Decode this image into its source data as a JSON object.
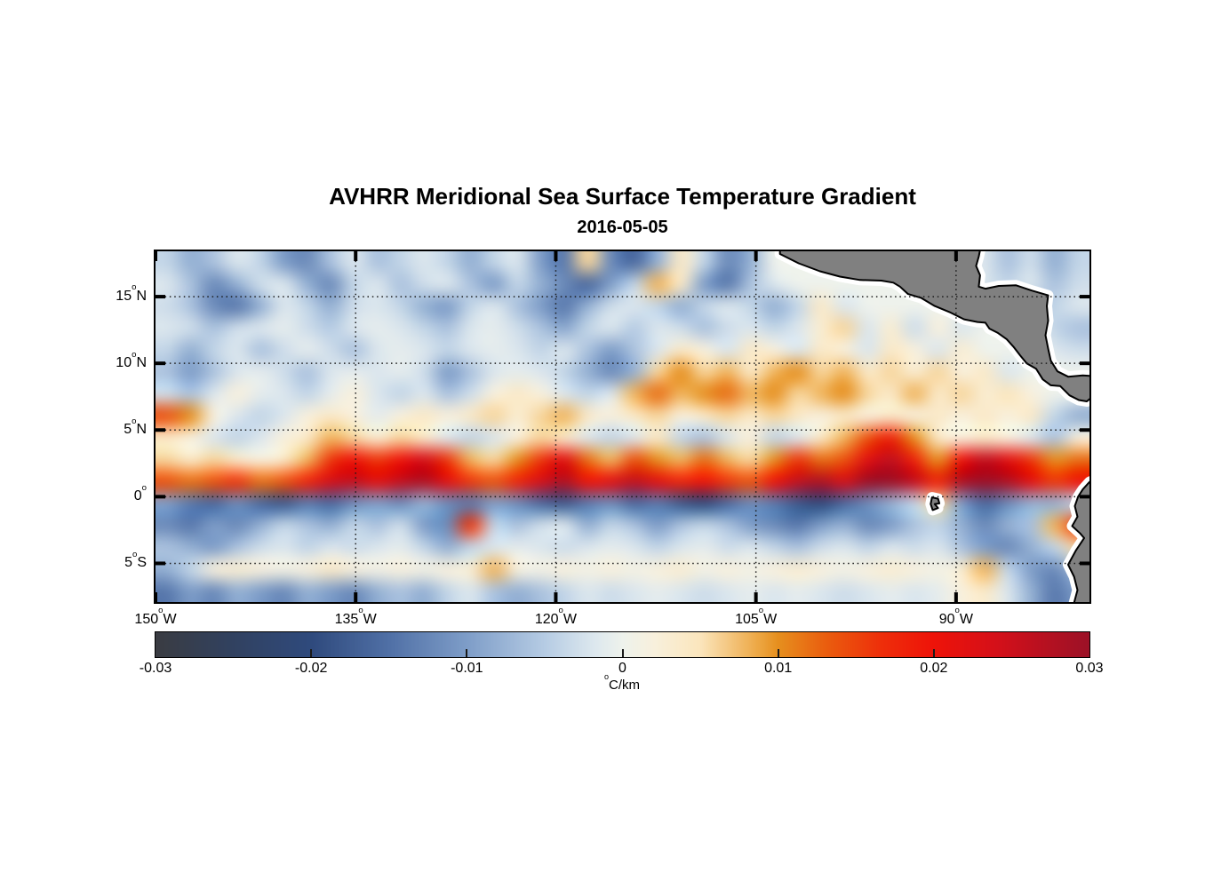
{
  "chart_data": {
    "type": "heatmap",
    "title": "AVHRR Meridional Sea Surface Temperature Gradient",
    "subtitle": "2016-05-05",
    "colorbar": {
      "tick_labels": [
        "-0.03",
        "-0.02",
        "-0.01",
        "0",
        "0.01",
        "0.02",
        "0.03"
      ],
      "tick_values": [
        -0.03,
        -0.02,
        -0.01,
        0,
        0.01,
        0.02,
        0.03
      ],
      "clim": [
        -0.03,
        0.03
      ],
      "unit_sup": "o",
      "unit_main": "C/km"
    },
    "axes": {
      "lon_range": [
        -150,
        -80
      ],
      "lat_range": [
        -7.9,
        18.4
      ],
      "xticks": [
        {
          "lon": -150,
          "deg": "150",
          "sup": "o",
          "dir": "W"
        },
        {
          "lon": -135,
          "deg": "135",
          "sup": "o",
          "dir": "W"
        },
        {
          "lon": -120,
          "deg": "120",
          "sup": "o",
          "dir": "W"
        },
        {
          "lon": -105,
          "deg": "105",
          "sup": "o",
          "dir": "W"
        },
        {
          "lon": -90,
          "deg": "90",
          "sup": "o",
          "dir": "W"
        }
      ],
      "yticks": [
        {
          "lat": 15,
          "deg": "15",
          "sup": "o",
          "dir": "N"
        },
        {
          "lat": 10,
          "deg": "10",
          "sup": "o",
          "dir": "N"
        },
        {
          "lat": 5,
          "deg": "5",
          "sup": "o",
          "dir": "N"
        },
        {
          "lat": 0,
          "deg": "0",
          "sup": "o",
          "dir": ""
        },
        {
          "lat": -5,
          "deg": "5",
          "sup": "o",
          "dir": "S"
        }
      ],
      "grid_lons": [
        -135,
        -120,
        -105,
        -90
      ],
      "grid_lats": [
        15,
        10,
        5,
        0,
        -5
      ]
    },
    "colormap_stops": [
      {
        "t": 0.0,
        "c": "#3a3c42"
      },
      {
        "t": 0.08,
        "c": "#31415f"
      },
      {
        "t": 0.167,
        "c": "#2f4a7d"
      },
      {
        "t": 0.25,
        "c": "#5070a6"
      },
      {
        "t": 0.333,
        "c": "#7e9dc8"
      },
      {
        "t": 0.417,
        "c": "#b6cce4"
      },
      {
        "t": 0.47,
        "c": "#dde8ee"
      },
      {
        "t": 0.5,
        "c": "#eef2ec"
      },
      {
        "t": 0.535,
        "c": "#f8f0dc"
      },
      {
        "t": 0.583,
        "c": "#fbe6bd"
      },
      {
        "t": 0.645,
        "c": "#eda845"
      },
      {
        "t": 0.667,
        "c": "#e68f1e"
      },
      {
        "t": 0.72,
        "c": "#ea5c0e"
      },
      {
        "t": 0.78,
        "c": "#ee2d0a"
      },
      {
        "t": 0.833,
        "c": "#ee1309"
      },
      {
        "t": 0.9,
        "c": "#d51019"
      },
      {
        "t": 1.0,
        "c": "#9c1127"
      }
    ],
    "grid": {
      "nlon": 40,
      "nlat": 16,
      "units": "0.001 degC per km, clim -30..30",
      "values": [
        [
          -4,
          -8,
          -6,
          -2,
          -4,
          -10,
          -12,
          -6,
          -2,
          -6,
          -4,
          -2,
          -4,
          -8,
          -4,
          -2,
          -10,
          -14,
          6,
          -12,
          -16,
          -8,
          4,
          -4,
          -12,
          -8,
          0,
          0,
          0,
          0,
          0,
          0,
          0,
          0,
          0,
          -2,
          -6,
          -3,
          -8,
          -4
        ],
        [
          -2,
          -6,
          -12,
          -8,
          -3,
          -2,
          -8,
          -12,
          -4,
          -2,
          -6,
          -3,
          -2,
          -6,
          -10,
          -4,
          -8,
          -12,
          -16,
          -10,
          -4,
          8,
          4,
          -10,
          -14,
          -6,
          -2,
          0,
          0,
          0,
          0,
          0,
          0,
          0,
          0,
          -2,
          -4,
          -2,
          -6,
          -3
        ],
        [
          -3,
          -6,
          -12,
          -14,
          -8,
          -2,
          -4,
          -8,
          -3,
          -2,
          -4,
          -8,
          -10,
          -4,
          -2,
          -6,
          -10,
          -14,
          -8,
          -3,
          -2,
          -4,
          -8,
          -4,
          -2,
          -4,
          -8,
          -4,
          4,
          -2,
          0,
          0,
          0,
          0,
          0,
          -2,
          -3,
          -6,
          -4,
          -2
        ],
        [
          -2,
          -3,
          -6,
          -3,
          -2,
          -1,
          -3,
          -5,
          -2,
          -1,
          -2,
          -4,
          -6,
          -2,
          -1,
          -3,
          -6,
          -9,
          -4,
          -2,
          -5,
          -2,
          -3,
          -6,
          -3,
          -2,
          -4,
          -2,
          3,
          6,
          -2,
          3,
          -3,
          2,
          -2,
          0,
          0,
          0,
          -4,
          -6
        ],
        [
          -4,
          -8,
          -4,
          -2,
          -6,
          -3,
          -1,
          -3,
          -6,
          -2,
          -1,
          -2,
          -4,
          -2,
          -1,
          -2,
          -4,
          -2,
          -6,
          -10,
          -6,
          -2,
          4,
          2,
          -2,
          4,
          2,
          -2,
          4,
          2,
          -2,
          4,
          2,
          -2,
          3,
          0,
          0,
          0,
          -2,
          -3
        ],
        [
          -6,
          -10,
          -6,
          -2,
          -1,
          -3,
          -6,
          -2,
          -1,
          -2,
          -1,
          -3,
          -10,
          -6,
          -2,
          -1,
          -2,
          -4,
          -8,
          -12,
          -8,
          6,
          10,
          6,
          8,
          4,
          8,
          10,
          6,
          8,
          4,
          6,
          3,
          6,
          2,
          4,
          -2,
          0,
          0,
          0
        ],
        [
          -3,
          -6,
          -2,
          2,
          -1,
          -2,
          -4,
          -1,
          2,
          -2,
          -4,
          -2,
          -6,
          -3,
          2,
          4,
          2,
          -2,
          -4,
          -2,
          8,
          12,
          8,
          10,
          12,
          8,
          10,
          6,
          8,
          10,
          6,
          4,
          8,
          4,
          6,
          3,
          5,
          2,
          0,
          0
        ],
        [
          14,
          10,
          2,
          -2,
          -4,
          -2,
          2,
          4,
          2,
          -1,
          2,
          4,
          2,
          4,
          6,
          3,
          6,
          8,
          4,
          2,
          4,
          6,
          2,
          4,
          6,
          4,
          6,
          4,
          2,
          4,
          2,
          4,
          2,
          4,
          2,
          4,
          2,
          4,
          -4,
          -8
        ],
        [
          4,
          2,
          -2,
          -4,
          -2,
          2,
          4,
          8,
          6,
          3,
          6,
          4,
          -2,
          -4,
          -2,
          2,
          6,
          4,
          -2,
          -4,
          -2,
          4,
          -4,
          -6,
          -2,
          2,
          -4,
          -2,
          4,
          8,
          14,
          18,
          10,
          4,
          2,
          4,
          2,
          -2,
          -6,
          2
        ],
        [
          6,
          4,
          6,
          4,
          2,
          4,
          8,
          16,
          20,
          16,
          20,
          24,
          16,
          8,
          6,
          10,
          16,
          22,
          12,
          8,
          14,
          10,
          8,
          12,
          8,
          6,
          10,
          16,
          12,
          14,
          22,
          26,
          18,
          10,
          20,
          26,
          22,
          16,
          10,
          12
        ],
        [
          14,
          12,
          14,
          16,
          12,
          14,
          18,
          24,
          26,
          22,
          26,
          28,
          22,
          16,
          14,
          18,
          24,
          28,
          20,
          22,
          26,
          22,
          18,
          20,
          16,
          14,
          20,
          26,
          28,
          24,
          30,
          30,
          26,
          18,
          28,
          30,
          28,
          22,
          16,
          20
        ],
        [
          -10,
          -14,
          -16,
          -12,
          -16,
          -18,
          -14,
          -16,
          -12,
          -10,
          -12,
          -8,
          -12,
          -14,
          -10,
          -12,
          -16,
          -18,
          -14,
          -12,
          -16,
          -14,
          -18,
          -20,
          -16,
          -12,
          -14,
          -18,
          -20,
          -16,
          -12,
          -8,
          -4,
          6,
          -10,
          -16,
          -12,
          -8,
          -8,
          -4
        ],
        [
          -12,
          -14,
          -10,
          -12,
          -8,
          -4,
          -6,
          -8,
          -4,
          -6,
          -3,
          -10,
          -12,
          16,
          -4,
          -6,
          -3,
          -2,
          -8,
          -4,
          -6,
          -10,
          -6,
          -4,
          -6,
          -10,
          -12,
          -14,
          -10,
          -8,
          -12,
          -10,
          -6,
          -4,
          -8,
          -12,
          -8,
          -6,
          8,
          16
        ],
        [
          -6,
          -8,
          -10,
          -6,
          -3,
          -2,
          -4,
          -2,
          -3,
          -2,
          -1,
          -4,
          -8,
          -4,
          -2,
          -1,
          -2,
          -3,
          -2,
          -1,
          -2,
          -4,
          -2,
          -1,
          -3,
          -2,
          -4,
          -6,
          -3,
          -2,
          -4,
          -2,
          -3,
          -2,
          -6,
          -10,
          -12,
          -8,
          -4,
          6
        ],
        [
          -8,
          -4,
          2,
          3,
          2,
          1,
          2,
          4,
          2,
          1,
          2,
          1,
          2,
          3,
          8,
          2,
          1,
          2,
          1,
          2,
          1,
          2,
          3,
          1,
          2,
          1,
          2,
          3,
          2,
          1,
          2,
          3,
          2,
          1,
          3,
          8,
          -4,
          -10,
          -12,
          -6
        ],
        [
          -14,
          -10,
          -12,
          -8,
          -10,
          -12,
          -8,
          -10,
          -12,
          -8,
          -6,
          -8,
          -4,
          -2,
          -6,
          -8,
          -6,
          -4,
          -2,
          -3,
          -2,
          -1,
          -2,
          -3,
          -2,
          -1,
          -2,
          -1,
          -2,
          -3,
          -2,
          -1,
          -2,
          -1,
          2,
          4,
          -2,
          -8,
          -14,
          -10
        ]
      ]
    },
    "land": {
      "fill": "#808080",
      "outline": "#000000",
      "halo": "#ffffff",
      "polygons": {
        "central_america": [
          [
            -103.2,
            19
          ],
          [
            -103.2,
            18.2
          ],
          [
            -101.8,
            17.5
          ],
          [
            -100.2,
            16.9
          ],
          [
            -98.7,
            16.5
          ],
          [
            -97.2,
            16.25
          ],
          [
            -95.6,
            16.2
          ],
          [
            -94.7,
            16.05
          ],
          [
            -94.2,
            15.75
          ],
          [
            -93.6,
            15.2
          ],
          [
            -92.6,
            14.9
          ],
          [
            -91.6,
            14.3
          ],
          [
            -90.4,
            13.8
          ],
          [
            -89.4,
            13.3
          ],
          [
            -88.4,
            13.1
          ],
          [
            -87.8,
            13.05
          ],
          [
            -87.5,
            12.6
          ],
          [
            -86.9,
            12.3
          ],
          [
            -86.2,
            11.8
          ],
          [
            -85.7,
            11.25
          ],
          [
            -85.2,
            10.6
          ],
          [
            -84.7,
            10.0
          ],
          [
            -84.0,
            9.6
          ],
          [
            -83.5,
            8.8
          ],
          [
            -82.9,
            8.35
          ],
          [
            -82.2,
            8.3
          ],
          [
            -81.5,
            7.6
          ],
          [
            -80.8,
            7.25
          ],
          [
            -80.2,
            7.15
          ],
          [
            -79.4,
            7.8
          ],
          [
            -79.0,
            9.0
          ],
          [
            -80.5,
            9.1
          ],
          [
            -81.6,
            9.0
          ],
          [
            -82.4,
            9.4
          ],
          [
            -82.9,
            10.2
          ],
          [
            -83.1,
            11.1
          ],
          [
            -83.3,
            12.1
          ],
          [
            -83.1,
            13.2
          ],
          [
            -83.2,
            14.3
          ],
          [
            -83.1,
            15.1
          ],
          [
            -84.3,
            15.45
          ],
          [
            -85.5,
            15.85
          ],
          [
            -86.8,
            15.8
          ],
          [
            -87.8,
            15.6
          ],
          [
            -88.3,
            15.75
          ],
          [
            -88.2,
            16.6
          ],
          [
            -88.5,
            17.3
          ],
          [
            -88.3,
            18.0
          ],
          [
            -88.1,
            19
          ]
        ],
        "south_america": [
          [
            -79.0,
            1.6
          ],
          [
            -80.0,
            1.1
          ],
          [
            -80.5,
            0.55
          ],
          [
            -80.85,
            0.0
          ],
          [
            -81.1,
            -0.7
          ],
          [
            -80.9,
            -1.5
          ],
          [
            -81.3,
            -2.2
          ],
          [
            -80.7,
            -2.75
          ],
          [
            -80.4,
            -3.1
          ],
          [
            -81.0,
            -4.0
          ],
          [
            -81.6,
            -5.1
          ],
          [
            -81.15,
            -6.0
          ],
          [
            -80.9,
            -7.0
          ],
          [
            -81.3,
            -8.5
          ],
          [
            -79.0,
            -8.5
          ]
        ],
        "galapagos": [
          [
            -91.8,
            -0.05
          ],
          [
            -91.35,
            -0.15
          ],
          [
            -91.25,
            -0.5
          ],
          [
            -91.6,
            -0.55
          ],
          [
            -91.35,
            -0.85
          ],
          [
            -91.75,
            -1.0
          ],
          [
            -91.9,
            -0.55
          ]
        ]
      }
    }
  }
}
